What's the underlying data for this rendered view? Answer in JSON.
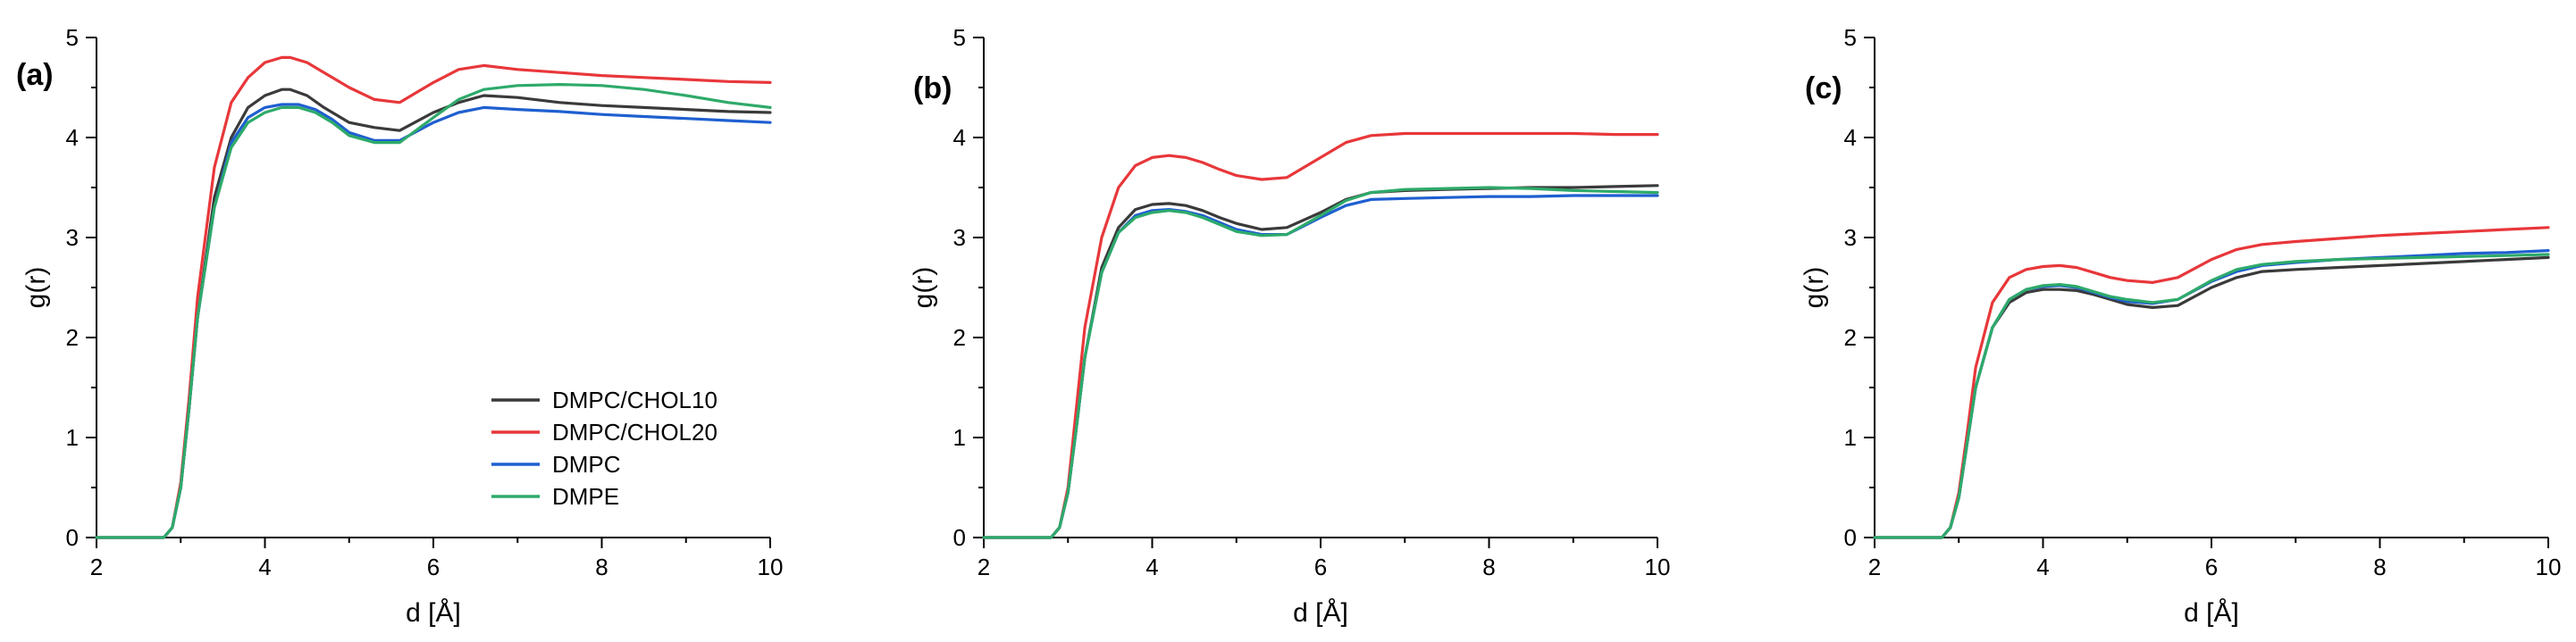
{
  "chart_data": [
    {
      "type": "line",
      "panel_label": "(a)",
      "xlabel": "d [Å]",
      "ylabel": "g(r)",
      "xlim": [
        2,
        10
      ],
      "ylim": [
        0,
        5
      ],
      "xticks": [
        "2",
        "4",
        "6",
        "8",
        "10"
      ],
      "yticks": [
        "0",
        "1",
        "2",
        "3",
        "4",
        "5"
      ],
      "grid": false,
      "legend": "bottom-right",
      "series": [
        {
          "name": "DMPC/CHOL10",
          "color": "#3a3a3a",
          "x": [
            2.0,
            2.8,
            2.9,
            3.0,
            3.1,
            3.2,
            3.4,
            3.6,
            3.8,
            4.0,
            4.2,
            4.3,
            4.5,
            4.7,
            5.0,
            5.3,
            5.6,
            6.0,
            6.3,
            6.6,
            7.0,
            7.5,
            8.0,
            8.5,
            9.0,
            9.5,
            10.0
          ],
          "y": [
            0.0,
            0.0,
            0.1,
            0.5,
            1.3,
            2.2,
            3.4,
            4.0,
            4.3,
            4.42,
            4.48,
            4.48,
            4.42,
            4.3,
            4.15,
            4.1,
            4.07,
            4.25,
            4.35,
            4.42,
            4.4,
            4.35,
            4.32,
            4.3,
            4.28,
            4.26,
            4.25
          ]
        },
        {
          "name": "DMPC/CHOL20",
          "color": "#e8373a",
          "x": [
            2.0,
            2.8,
            2.9,
            3.0,
            3.1,
            3.2,
            3.4,
            3.6,
            3.8,
            4.0,
            4.2,
            4.3,
            4.5,
            4.7,
            5.0,
            5.3,
            5.6,
            6.0,
            6.3,
            6.6,
            7.0,
            7.5,
            8.0,
            8.5,
            9.0,
            9.5,
            10.0
          ],
          "y": [
            0.0,
            0.0,
            0.1,
            0.55,
            1.4,
            2.4,
            3.7,
            4.35,
            4.6,
            4.75,
            4.8,
            4.8,
            4.75,
            4.65,
            4.5,
            4.38,
            4.35,
            4.55,
            4.68,
            4.72,
            4.68,
            4.65,
            4.62,
            4.6,
            4.58,
            4.56,
            4.55
          ]
        },
        {
          "name": "DMPC",
          "color": "#1f5fd0",
          "x": [
            2.0,
            2.8,
            2.9,
            3.0,
            3.1,
            3.2,
            3.4,
            3.6,
            3.8,
            4.0,
            4.2,
            4.4,
            4.6,
            4.8,
            5.0,
            5.3,
            5.6,
            6.0,
            6.3,
            6.6,
            7.0,
            7.5,
            8.0,
            8.5,
            9.0,
            9.5,
            10.0
          ],
          "y": [
            0.0,
            0.0,
            0.1,
            0.5,
            1.3,
            2.2,
            3.3,
            3.95,
            4.2,
            4.3,
            4.33,
            4.33,
            4.28,
            4.18,
            4.05,
            3.97,
            3.97,
            4.15,
            4.25,
            4.3,
            4.28,
            4.26,
            4.23,
            4.21,
            4.19,
            4.17,
            4.15
          ]
        },
        {
          "name": "DMPE",
          "color": "#2eaa6a",
          "x": [
            2.0,
            2.8,
            2.9,
            3.0,
            3.1,
            3.2,
            3.4,
            3.6,
            3.8,
            4.0,
            4.2,
            4.4,
            4.6,
            4.8,
            5.0,
            5.3,
            5.6,
            6.0,
            6.3,
            6.6,
            7.0,
            7.5,
            8.0,
            8.5,
            9.0,
            9.5,
            10.0
          ],
          "y": [
            0.0,
            0.0,
            0.1,
            0.5,
            1.3,
            2.2,
            3.3,
            3.9,
            4.15,
            4.25,
            4.3,
            4.3,
            4.25,
            4.15,
            4.02,
            3.95,
            3.95,
            4.2,
            4.38,
            4.48,
            4.52,
            4.53,
            4.52,
            4.48,
            4.42,
            4.35,
            4.3
          ]
        }
      ]
    },
    {
      "type": "line",
      "panel_label": "(b)",
      "xlabel": "d [Å]",
      "ylabel": "g(r)",
      "xlim": [
        2,
        10
      ],
      "ylim": [
        0,
        5
      ],
      "xticks": [
        "2",
        "4",
        "6",
        "8",
        "10"
      ],
      "yticks": [
        "0",
        "1",
        "2",
        "3",
        "4",
        "5"
      ],
      "grid": false,
      "series": [
        {
          "name": "DMPC/CHOL10",
          "color": "#3a3a3a",
          "x": [
            2.0,
            2.8,
            2.9,
            3.0,
            3.1,
            3.2,
            3.4,
            3.6,
            3.8,
            4.0,
            4.2,
            4.4,
            4.6,
            4.8,
            5.0,
            5.3,
            5.6,
            6.0,
            6.3,
            6.6,
            7.0,
            7.5,
            8.0,
            8.5,
            9.0,
            9.5,
            10.0
          ],
          "y": [
            0.0,
            0.0,
            0.1,
            0.45,
            1.1,
            1.8,
            2.7,
            3.1,
            3.28,
            3.33,
            3.34,
            3.32,
            3.27,
            3.2,
            3.14,
            3.08,
            3.1,
            3.25,
            3.38,
            3.45,
            3.47,
            3.48,
            3.49,
            3.5,
            3.5,
            3.51,
            3.52
          ]
        },
        {
          "name": "DMPC/CHOL20",
          "color": "#e8373a",
          "x": [
            2.0,
            2.8,
            2.9,
            3.0,
            3.1,
            3.2,
            3.4,
            3.6,
            3.8,
            4.0,
            4.2,
            4.4,
            4.6,
            4.8,
            5.0,
            5.3,
            5.6,
            6.0,
            6.3,
            6.6,
            7.0,
            7.5,
            8.0,
            8.5,
            9.0,
            9.5,
            10.0
          ],
          "y": [
            0.0,
            0.0,
            0.1,
            0.5,
            1.3,
            2.1,
            3.0,
            3.5,
            3.72,
            3.8,
            3.82,
            3.8,
            3.75,
            3.68,
            3.62,
            3.58,
            3.6,
            3.8,
            3.95,
            4.02,
            4.04,
            4.04,
            4.04,
            4.04,
            4.04,
            4.03,
            4.03
          ]
        },
        {
          "name": "DMPC",
          "color": "#1f5fd0",
          "x": [
            2.0,
            2.8,
            2.9,
            3.0,
            3.1,
            3.2,
            3.4,
            3.6,
            3.8,
            4.0,
            4.2,
            4.4,
            4.6,
            4.8,
            5.0,
            5.3,
            5.6,
            6.0,
            6.3,
            6.6,
            7.0,
            7.5,
            8.0,
            8.5,
            9.0,
            9.5,
            10.0
          ],
          "y": [
            0.0,
            0.0,
            0.1,
            0.45,
            1.1,
            1.8,
            2.65,
            3.05,
            3.22,
            3.27,
            3.28,
            3.26,
            3.22,
            3.15,
            3.08,
            3.03,
            3.03,
            3.2,
            3.32,
            3.38,
            3.39,
            3.4,
            3.41,
            3.41,
            3.42,
            3.42,
            3.42
          ]
        },
        {
          "name": "DMPE",
          "color": "#2eaa6a",
          "x": [
            2.0,
            2.8,
            2.9,
            3.0,
            3.1,
            3.2,
            3.4,
            3.6,
            3.8,
            4.0,
            4.2,
            4.4,
            4.6,
            4.8,
            5.0,
            5.3,
            5.6,
            6.0,
            6.3,
            6.6,
            7.0,
            7.5,
            8.0,
            8.5,
            9.0,
            9.5,
            10.0
          ],
          "y": [
            0.0,
            0.0,
            0.1,
            0.45,
            1.1,
            1.8,
            2.65,
            3.05,
            3.2,
            3.25,
            3.27,
            3.25,
            3.2,
            3.13,
            3.06,
            3.02,
            3.03,
            3.22,
            3.37,
            3.45,
            3.48,
            3.49,
            3.5,
            3.49,
            3.47,
            3.46,
            3.45
          ]
        }
      ]
    },
    {
      "type": "line",
      "panel_label": "(c)",
      "xlabel": "d [Å]",
      "ylabel": "g(r)",
      "xlim": [
        2,
        10
      ],
      "ylim": [
        0,
        5
      ],
      "xticks": [
        "2",
        "4",
        "6",
        "8",
        "10"
      ],
      "yticks": [
        "0",
        "1",
        "2",
        "3",
        "4",
        "5"
      ],
      "grid": false,
      "series": [
        {
          "name": "DMPC/CHOL10",
          "color": "#3a3a3a",
          "x": [
            2.0,
            2.8,
            2.9,
            3.0,
            3.1,
            3.2,
            3.4,
            3.6,
            3.8,
            4.0,
            4.2,
            4.4,
            4.6,
            4.8,
            5.0,
            5.3,
            5.6,
            6.0,
            6.3,
            6.6,
            7.0,
            7.5,
            8.0,
            8.5,
            9.0,
            9.5,
            10.0
          ],
          "y": [
            0.0,
            0.0,
            0.1,
            0.4,
            0.95,
            1.5,
            2.1,
            2.35,
            2.45,
            2.48,
            2.48,
            2.47,
            2.43,
            2.38,
            2.33,
            2.3,
            2.32,
            2.5,
            2.6,
            2.66,
            2.68,
            2.7,
            2.72,
            2.74,
            2.76,
            2.78,
            2.8
          ]
        },
        {
          "name": "DMPC/CHOL20",
          "color": "#e8373a",
          "x": [
            2.0,
            2.8,
            2.9,
            3.0,
            3.1,
            3.2,
            3.4,
            3.6,
            3.8,
            4.0,
            4.2,
            4.4,
            4.6,
            4.8,
            5.0,
            5.3,
            5.6,
            6.0,
            6.3,
            6.6,
            7.0,
            7.5,
            8.0,
            8.5,
            9.0,
            9.5,
            10.0
          ],
          "y": [
            0.0,
            0.0,
            0.1,
            0.45,
            1.05,
            1.7,
            2.35,
            2.6,
            2.68,
            2.71,
            2.72,
            2.7,
            2.65,
            2.6,
            2.57,
            2.55,
            2.6,
            2.78,
            2.88,
            2.93,
            2.96,
            2.99,
            3.02,
            3.04,
            3.06,
            3.08,
            3.1
          ]
        },
        {
          "name": "DMPC",
          "color": "#1f5fd0",
          "x": [
            2.0,
            2.8,
            2.9,
            3.0,
            3.1,
            3.2,
            3.4,
            3.6,
            3.8,
            4.0,
            4.2,
            4.4,
            4.6,
            4.8,
            5.0,
            5.3,
            5.6,
            6.0,
            6.3,
            6.6,
            7.0,
            7.5,
            8.0,
            8.5,
            9.0,
            9.5,
            10.0
          ],
          "y": [
            0.0,
            0.0,
            0.1,
            0.4,
            0.95,
            1.5,
            2.1,
            2.38,
            2.48,
            2.51,
            2.52,
            2.5,
            2.45,
            2.4,
            2.36,
            2.34,
            2.38,
            2.56,
            2.66,
            2.72,
            2.75,
            2.78,
            2.8,
            2.82,
            2.84,
            2.85,
            2.87
          ]
        },
        {
          "name": "DMPE",
          "color": "#2eaa6a",
          "x": [
            2.0,
            2.8,
            2.9,
            3.0,
            3.1,
            3.2,
            3.4,
            3.6,
            3.8,
            4.0,
            4.2,
            4.4,
            4.6,
            4.8,
            5.0,
            5.3,
            5.6,
            6.0,
            6.3,
            6.6,
            7.0,
            7.5,
            8.0,
            8.5,
            9.0,
            9.5,
            10.0
          ],
          "y": [
            0.0,
            0.0,
            0.1,
            0.4,
            0.95,
            1.5,
            2.1,
            2.38,
            2.48,
            2.52,
            2.53,
            2.51,
            2.46,
            2.41,
            2.38,
            2.35,
            2.38,
            2.57,
            2.68,
            2.73,
            2.76,
            2.78,
            2.79,
            2.8,
            2.81,
            2.82,
            2.83
          ]
        }
      ]
    }
  ]
}
